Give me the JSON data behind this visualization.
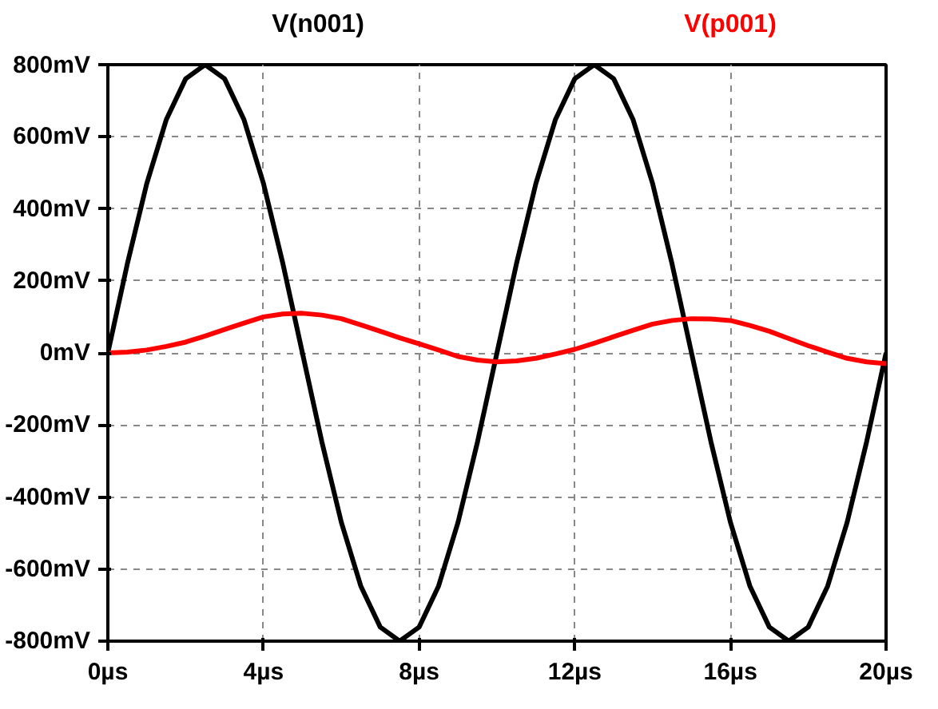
{
  "chart_data": {
    "type": "line",
    "grid": true,
    "line_style": "solid",
    "marker": "none",
    "x": [
      0,
      0.5,
      1,
      1.5,
      2,
      2.5,
      3,
      3.5,
      4,
      4.5,
      5,
      5.5,
      6,
      6.5,
      7,
      7.5,
      8,
      8.5,
      9,
      9.5,
      10,
      10.5,
      11,
      11.5,
      12,
      12.5,
      13,
      13.5,
      14,
      14.5,
      15,
      15.5,
      16,
      16.5,
      17,
      17.5,
      18,
      18.5,
      19,
      19.5,
      20
    ],
    "series": [
      {
        "name": "V(n001)",
        "color": "#000000",
        "values": [
          0,
          247,
          470,
          647,
          761,
          800,
          761,
          647,
          470,
          247,
          0,
          -247,
          -470,
          -647,
          -761,
          -800,
          -761,
          -647,
          -470,
          -247,
          0,
          247,
          470,
          647,
          761,
          800,
          761,
          647,
          470,
          247,
          0,
          -247,
          -470,
          -647,
          -761,
          -800,
          -761,
          -647,
          -470,
          -247,
          0
        ]
      },
      {
        "name": "V(p001)",
        "color": "#ff0000",
        "values": [
          0,
          2,
          8,
          18,
          30,
          47,
          65,
          83,
          100,
          108,
          110,
          105,
          95,
          78,
          60,
          42,
          25,
          8,
          -10,
          -20,
          -25,
          -22,
          -15,
          -3,
          10,
          27,
          45,
          63,
          80,
          90,
          95,
          94,
          90,
          76,
          60,
          40,
          20,
          2,
          -15,
          -25,
          -30
        ]
      }
    ],
    "xlim": [
      0,
      20
    ],
    "xticks": [
      {
        "value": 0,
        "label": "0µs"
      },
      {
        "value": 4,
        "label": "4µs"
      },
      {
        "value": 8,
        "label": "8µs"
      },
      {
        "value": 12,
        "label": "12µs"
      },
      {
        "value": 16,
        "label": "16µs"
      },
      {
        "value": 20,
        "label": "20µs"
      }
    ],
    "ylim": [
      -800,
      800
    ],
    "yticks": [
      {
        "value": -800,
        "label": "-800mV"
      },
      {
        "value": -600,
        "label": "-600mV"
      },
      {
        "value": -400,
        "label": "-400mV"
      },
      {
        "value": -200,
        "label": "-200mV"
      },
      {
        "value": 0,
        "label": "0mV"
      },
      {
        "value": 200,
        "label": "200mV"
      },
      {
        "value": 400,
        "label": "400mV"
      },
      {
        "value": 600,
        "label": "600mV"
      },
      {
        "value": 800,
        "label": "800mV"
      }
    ]
  }
}
